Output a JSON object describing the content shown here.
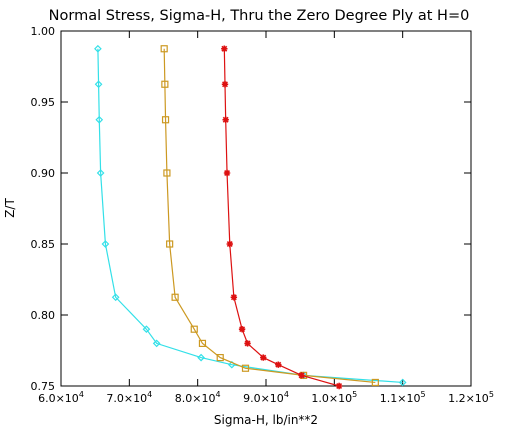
{
  "chart_data": {
    "type": "line",
    "title": "Normal Stress, Sigma-H, Thru the Zero Degree Ply at H=0",
    "xlabel": "Sigma-H,  lb/in**2",
    "ylabel": "Z/T",
    "xlim": [
      60000,
      120000
    ],
    "ylim": [
      0.75,
      1.0
    ],
    "xticks": [
      {
        "value": 60000,
        "mantissa": "6.0",
        "times": "×10",
        "exp": "4"
      },
      {
        "value": 70000,
        "mantissa": "7.0",
        "times": "×10",
        "exp": "4"
      },
      {
        "value": 80000,
        "mantissa": "8.0",
        "times": "×10",
        "exp": "4"
      },
      {
        "value": 90000,
        "mantissa": "9.0",
        "times": "×10",
        "exp": "4"
      },
      {
        "value": 100000,
        "mantissa": "1.0",
        "times": "×10",
        "exp": "5"
      },
      {
        "value": 110000,
        "mantissa": "1.1",
        "times": "×10",
        "exp": "5"
      },
      {
        "value": 120000,
        "mantissa": "1.2",
        "times": "×10",
        "exp": "5"
      }
    ],
    "yticks": [
      {
        "value": 0.75,
        "label": "0.75"
      },
      {
        "value": 0.8,
        "label": "0.80"
      },
      {
        "value": 0.85,
        "label": "0.85"
      },
      {
        "value": 0.9,
        "label": "0.90"
      },
      {
        "value": 0.95,
        "label": "0.95"
      },
      {
        "value": 1.0,
        "label": "1.00"
      }
    ],
    "grid": false,
    "series": [
      {
        "marker": "diamond",
        "color": "#33e0e8",
        "points": [
          [
            65400,
            0.9875
          ],
          [
            65500,
            0.9625
          ],
          [
            65600,
            0.9375
          ],
          [
            65800,
            0.9
          ],
          [
            66500,
            0.85
          ],
          [
            68000,
            0.8125
          ],
          [
            72500,
            0.79
          ],
          [
            74000,
            0.78
          ],
          [
            80500,
            0.77
          ],
          [
            85000,
            0.765
          ],
          [
            95500,
            0.7575
          ],
          [
            110000,
            0.7525
          ]
        ]
      },
      {
        "marker": "square",
        "color": "#cc9922",
        "points": [
          [
            75100,
            0.9875
          ],
          [
            75200,
            0.9625
          ],
          [
            75300,
            0.9375
          ],
          [
            75500,
            0.9
          ],
          [
            75900,
            0.85
          ],
          [
            76700,
            0.8125
          ],
          [
            79500,
            0.79
          ],
          [
            80700,
            0.78
          ],
          [
            83300,
            0.77
          ],
          [
            87000,
            0.7625
          ],
          [
            95500,
            0.7575
          ],
          [
            106000,
            0.7525
          ]
        ]
      },
      {
        "marker": "asterisk",
        "color": "#dd1111",
        "points": [
          [
            83900,
            0.9875
          ],
          [
            84000,
            0.9625
          ],
          [
            84100,
            0.9375
          ],
          [
            84300,
            0.9
          ],
          [
            84700,
            0.85
          ],
          [
            85300,
            0.8125
          ],
          [
            86500,
            0.79
          ],
          [
            87300,
            0.78
          ],
          [
            89600,
            0.77
          ],
          [
            91800,
            0.765
          ],
          [
            95200,
            0.7575
          ],
          [
            100700,
            0.75
          ]
        ]
      }
    ]
  }
}
